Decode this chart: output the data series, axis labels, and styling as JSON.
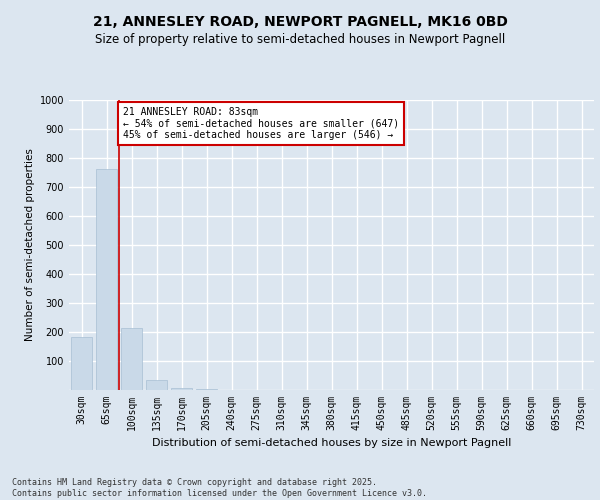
{
  "title": "21, ANNESLEY ROAD, NEWPORT PAGNELL, MK16 0BD",
  "subtitle": "Size of property relative to semi-detached houses in Newport Pagnell",
  "xlabel": "Distribution of semi-detached houses by size in Newport Pagnell",
  "ylabel": "Number of semi-detached properties",
  "categories": [
    "30sqm",
    "65sqm",
    "100sqm",
    "135sqm",
    "170sqm",
    "205sqm",
    "240sqm",
    "275sqm",
    "310sqm",
    "345sqm",
    "380sqm",
    "415sqm",
    "450sqm",
    "485sqm",
    "520sqm",
    "555sqm",
    "590sqm",
    "625sqm",
    "660sqm",
    "695sqm",
    "730sqm"
  ],
  "bar_values": [
    183,
    763,
    213,
    35,
    8,
    3,
    0,
    0,
    0,
    0,
    0,
    0,
    0,
    0,
    0,
    0,
    0,
    0,
    0,
    0,
    0
  ],
  "bar_color": "#c9d9e8",
  "bar_edgecolor": "#a8bfd4",
  "property_line_x": 1.5,
  "annotation_text": "21 ANNESLEY ROAD: 83sqm\n← 54% of semi-detached houses are smaller (647)\n45% of semi-detached houses are larger (546) →",
  "annotation_box_color": "#ffffff",
  "annotation_box_edgecolor": "#cc0000",
  "vline_color": "#cc0000",
  "background_color": "#dce6f0",
  "plot_bg_color": "#dce6f0",
  "grid_color": "#ffffff",
  "ylim": [
    0,
    1000
  ],
  "yticks": [
    0,
    100,
    200,
    300,
    400,
    500,
    600,
    700,
    800,
    900,
    1000
  ],
  "footer": "Contains HM Land Registry data © Crown copyright and database right 2025.\nContains public sector information licensed under the Open Government Licence v3.0.",
  "title_fontsize": 10,
  "subtitle_fontsize": 8.5,
  "xlabel_fontsize": 8,
  "ylabel_fontsize": 7.5,
  "tick_fontsize": 7,
  "footer_fontsize": 6,
  "annotation_fontsize": 7
}
